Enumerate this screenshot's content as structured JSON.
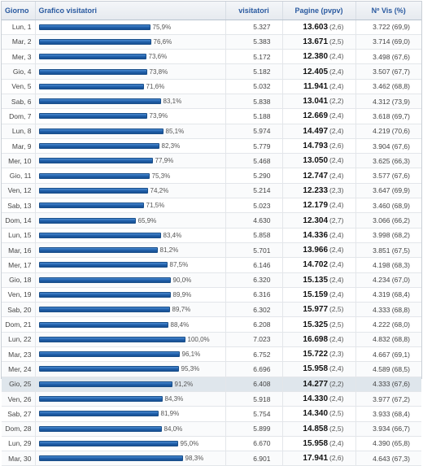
{
  "headers": {
    "day": "Giorno",
    "chart": "Grafico visitatori",
    "visitors": "visitatori",
    "pages": "Pagine  (pvpv)",
    "returning": "Nº Vis (%)"
  },
  "highlight_index": 24,
  "bar_color": "#1f5ea8",
  "rows": [
    {
      "day": "Lun, 1",
      "pct": 75.9,
      "pct_label": "75,9%",
      "visitors": "5.327",
      "pages": "13.603",
      "pvpv": "(2,6)",
      "returning": "3.722 (69,9)"
    },
    {
      "day": "Mar, 2",
      "pct": 76.6,
      "pct_label": "76,6%",
      "visitors": "5.383",
      "pages": "13.671",
      "pvpv": "(2,5)",
      "returning": "3.714 (69,0)"
    },
    {
      "day": "Mer, 3",
      "pct": 73.6,
      "pct_label": "73,6%",
      "visitors": "5.172",
      "pages": "12.380",
      "pvpv": "(2,4)",
      "returning": "3.498 (67,6)"
    },
    {
      "day": "Gio, 4",
      "pct": 73.8,
      "pct_label": "73,8%",
      "visitors": "5.182",
      "pages": "12.405",
      "pvpv": "(2,4)",
      "returning": "3.507 (67,7)"
    },
    {
      "day": "Ven, 5",
      "pct": 71.6,
      "pct_label": "71,6%",
      "visitors": "5.032",
      "pages": "11.941",
      "pvpv": "(2,4)",
      "returning": "3.462 (68,8)"
    },
    {
      "day": "Sab, 6",
      "pct": 83.1,
      "pct_label": "83,1%",
      "visitors": "5.838",
      "pages": "13.041",
      "pvpv": "(2,2)",
      "returning": "4.312 (73,9)"
    },
    {
      "day": "Dom, 7",
      "pct": 73.9,
      "pct_label": "73,9%",
      "visitors": "5.188",
      "pages": "12.669",
      "pvpv": "(2,4)",
      "returning": "3.618 (69,7)"
    },
    {
      "day": "Lun, 8",
      "pct": 85.1,
      "pct_label": "85,1%",
      "visitors": "5.974",
      "pages": "14.497",
      "pvpv": "(2,4)",
      "returning": "4.219 (70,6)"
    },
    {
      "day": "Mar, 9",
      "pct": 82.3,
      "pct_label": "82,3%",
      "visitors": "5.779",
      "pages": "14.793",
      "pvpv": "(2,6)",
      "returning": "3.904 (67,6)"
    },
    {
      "day": "Mer, 10",
      "pct": 77.9,
      "pct_label": "77,9%",
      "visitors": "5.468",
      "pages": "13.050",
      "pvpv": "(2,4)",
      "returning": "3.625 (66,3)"
    },
    {
      "day": "Gio, 11",
      "pct": 75.3,
      "pct_label": "75,3%",
      "visitors": "5.290",
      "pages": "12.747",
      "pvpv": "(2,4)",
      "returning": "3.577 (67,6)"
    },
    {
      "day": "Ven, 12",
      "pct": 74.2,
      "pct_label": "74,2%",
      "visitors": "5.214",
      "pages": "12.233",
      "pvpv": "(2,3)",
      "returning": "3.647 (69,9)"
    },
    {
      "day": "Sab, 13",
      "pct": 71.5,
      "pct_label": "71,5%",
      "visitors": "5.023",
      "pages": "12.179",
      "pvpv": "(2,4)",
      "returning": "3.460 (68,9)"
    },
    {
      "day": "Dom, 14",
      "pct": 65.9,
      "pct_label": "65,9%",
      "visitors": "4.630",
      "pages": "12.304",
      "pvpv": "(2,7)",
      "returning": "3.066 (66,2)"
    },
    {
      "day": "Lun, 15",
      "pct": 83.4,
      "pct_label": "83,4%",
      "visitors": "5.858",
      "pages": "14.336",
      "pvpv": "(2,4)",
      "returning": "3.998 (68,2)"
    },
    {
      "day": "Mar, 16",
      "pct": 81.2,
      "pct_label": "81,2%",
      "visitors": "5.701",
      "pages": "13.966",
      "pvpv": "(2,4)",
      "returning": "3.851 (67,5)"
    },
    {
      "day": "Mer, 17",
      "pct": 87.5,
      "pct_label": "87,5%",
      "visitors": "6.146",
      "pages": "14.702",
      "pvpv": "(2,4)",
      "returning": "4.198 (68,3)"
    },
    {
      "day": "Gio, 18",
      "pct": 90.0,
      "pct_label": "90,0%",
      "visitors": "6.320",
      "pages": "15.135",
      "pvpv": "(2,4)",
      "returning": "4.234 (67,0)"
    },
    {
      "day": "Ven, 19",
      "pct": 89.9,
      "pct_label": "89,9%",
      "visitors": "6.316",
      "pages": "15.159",
      "pvpv": "(2,4)",
      "returning": "4.319 (68,4)"
    },
    {
      "day": "Sab, 20",
      "pct": 89.7,
      "pct_label": "89,7%",
      "visitors": "6.302",
      "pages": "15.977",
      "pvpv": "(2,5)",
      "returning": "4.333 (68,8)"
    },
    {
      "day": "Dom, 21",
      "pct": 88.4,
      "pct_label": "88,4%",
      "visitors": "6.208",
      "pages": "15.325",
      "pvpv": "(2,5)",
      "returning": "4.222 (68,0)"
    },
    {
      "day": "Lun, 22",
      "pct": 100.0,
      "pct_label": "100,0%",
      "visitors": "7.023",
      "pages": "16.698",
      "pvpv": "(2,4)",
      "returning": "4.832 (68,8)"
    },
    {
      "day": "Mar, 23",
      "pct": 96.1,
      "pct_label": "96,1%",
      "visitors": "6.752",
      "pages": "15.722",
      "pvpv": "(2,3)",
      "returning": "4.667 (69,1)"
    },
    {
      "day": "Mer, 24",
      "pct": 95.3,
      "pct_label": "95,3%",
      "visitors": "6.696",
      "pages": "15.958",
      "pvpv": "(2,4)",
      "returning": "4.589 (68,5)"
    },
    {
      "day": "Gio, 25",
      "pct": 91.2,
      "pct_label": "91,2%",
      "visitors": "6.408",
      "pages": "14.277",
      "pvpv": "(2,2)",
      "returning": "4.333 (67,6)"
    },
    {
      "day": "Ven, 26",
      "pct": 84.3,
      "pct_label": "84,3%",
      "visitors": "5.918",
      "pages": "14.330",
      "pvpv": "(2,4)",
      "returning": "3.977 (67,2)"
    },
    {
      "day": "Sab, 27",
      "pct": 81.9,
      "pct_label": "81,9%",
      "visitors": "5.754",
      "pages": "14.340",
      "pvpv": "(2,5)",
      "returning": "3.933 (68,4)"
    },
    {
      "day": "Dom, 28",
      "pct": 84.0,
      "pct_label": "84,0%",
      "visitors": "5.899",
      "pages": "14.858",
      "pvpv": "(2,5)",
      "returning": "3.934 (66,7)"
    },
    {
      "day": "Lun, 29",
      "pct": 95.0,
      "pct_label": "95,0%",
      "visitors": "6.670",
      "pages": "15.958",
      "pvpv": "(2,4)",
      "returning": "4.390 (65,8)"
    },
    {
      "day": "Mar, 30",
      "pct": 98.3,
      "pct_label": "98,3%",
      "visitors": "6.901",
      "pages": "17.941",
      "pvpv": "(2,6)",
      "returning": "4.643 (67,3)"
    }
  ]
}
